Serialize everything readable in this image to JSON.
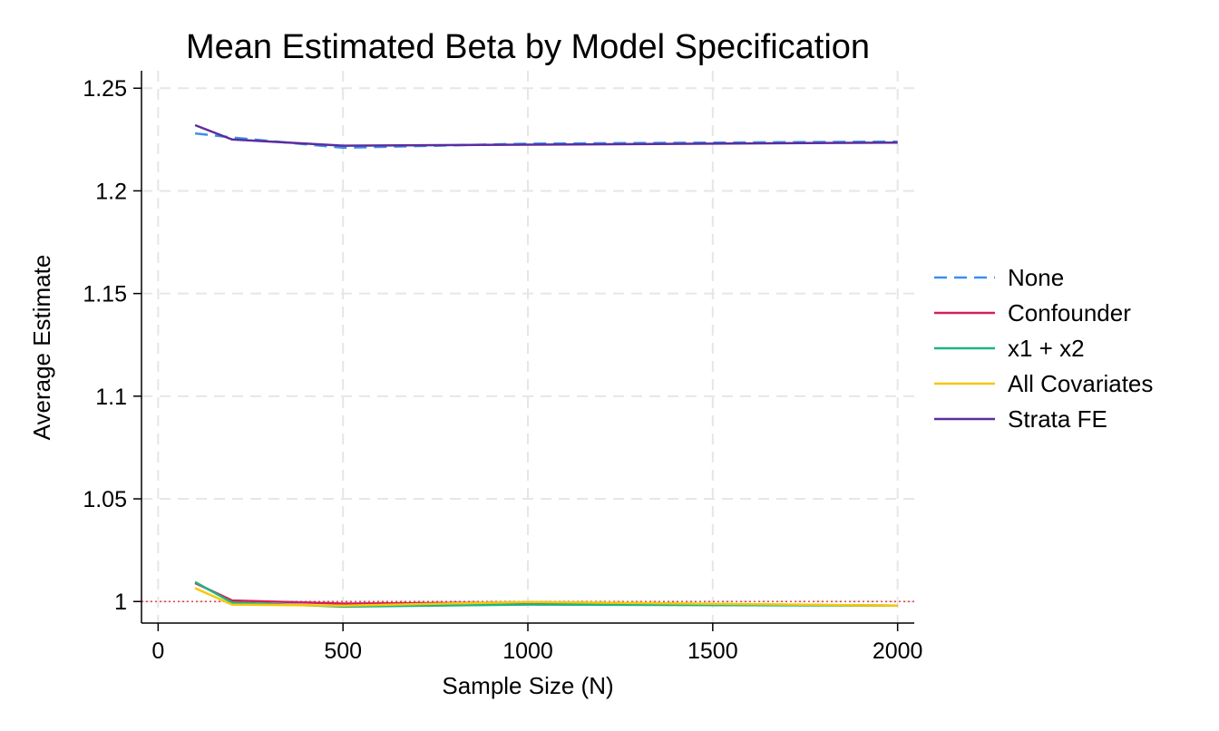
{
  "chart_data": {
    "type": "line",
    "title": "Mean Estimated Beta by Model Specification",
    "xlabel": "Sample Size (N)",
    "ylabel": "Average Estimate",
    "xlim": [
      -45,
      2045
    ],
    "ylim": [
      0.9895,
      1.2585
    ],
    "xticks": [
      0,
      500,
      1000,
      1500,
      2000
    ],
    "xtick_labels": [
      "0",
      "500",
      "1000",
      "1500",
      "2000"
    ],
    "yticks": [
      1,
      1.05,
      1.1,
      1.15,
      1.2,
      1.25
    ],
    "ytick_labels": [
      "1",
      "1.05",
      "1.1",
      "1.15",
      "1.2",
      "1.25"
    ],
    "grid": true,
    "reference_line": {
      "y": 1,
      "color": "#e8414a",
      "style": "dotted"
    },
    "legend_position": "right",
    "x": [
      100,
      200,
      500,
      1000,
      2000
    ],
    "series": [
      {
        "name": "None",
        "color": "#3a8fef",
        "dash": "dashed",
        "values": [
          1.228,
          1.226,
          1.221,
          1.223,
          1.224
        ]
      },
      {
        "name": "Confounder",
        "color": "#d41f5a",
        "dash": "solid",
        "values": [
          1.009,
          1.0005,
          0.999,
          0.9995,
          0.998
        ]
      },
      {
        "name": "x1 + x2",
        "color": "#1bb584",
        "dash": "solid",
        "values": [
          1.0095,
          0.9995,
          0.9975,
          0.9985,
          0.998
        ]
      },
      {
        "name": "All Covariates",
        "color": "#f5c80c",
        "dash": "solid",
        "values": [
          1.0065,
          0.9985,
          0.998,
          0.9998,
          0.998
        ]
      },
      {
        "name": "Strata FE",
        "color": "#5b2e9e",
        "dash": "solid",
        "values": [
          1.232,
          1.225,
          1.222,
          1.2225,
          1.2235
        ]
      }
    ]
  }
}
